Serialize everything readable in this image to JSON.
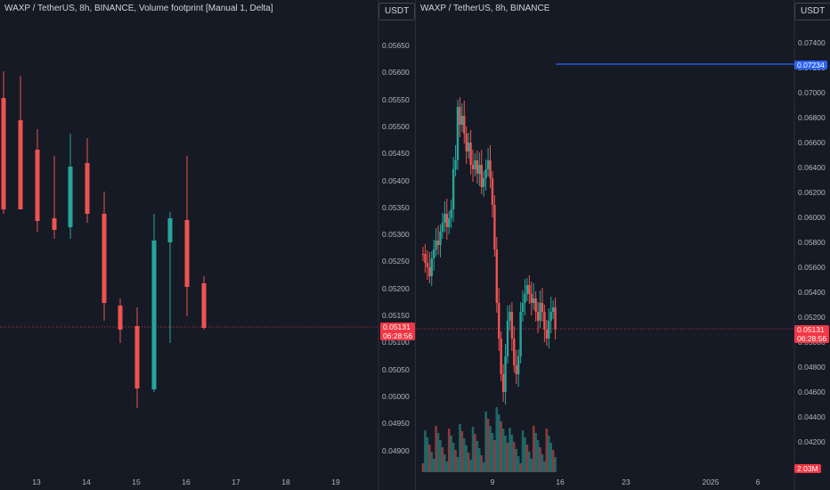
{
  "left_chart": {
    "title": "WAXP / TetherUS, 8h, BINANCE, Volume footprint [Manual 1, Delta]",
    "currency": "USDT",
    "price_labels": [
      "0.05650",
      "0.05600",
      "0.05550",
      "0.05500",
      "0.05450",
      "0.05400",
      "0.05350",
      "0.05300",
      "0.05250",
      "0.05200",
      "0.05150",
      "0.05100",
      "0.05050",
      "0.05000",
      "0.04950",
      "0.04900"
    ],
    "current_price": "0.05131",
    "countdown": "06:28:56",
    "time_labels": [
      "13",
      "14",
      "15",
      "16",
      "17",
      "18",
      "19"
    ]
  },
  "right_chart": {
    "title": "WAXP / TetherUS, 8h, BINANCE",
    "currency": "USDT",
    "price_labels": [
      "0.07400",
      "0.07200",
      "0.07000",
      "0.06800",
      "0.06600",
      "0.06400",
      "0.06200",
      "0.06000",
      "0.05800",
      "0.05600",
      "0.05400",
      "0.05200",
      "0.05000",
      "0.04800",
      "0.04600",
      "0.04400",
      "0.04200"
    ],
    "line_price": "0.07234",
    "current_price": "0.05131",
    "countdown": "06:28:56",
    "volume_label": "2.03M",
    "time_labels": [
      "9",
      "16",
      "23",
      "2025",
      "6"
    ]
  },
  "colors": {
    "up": "#26a69a",
    "down": "#ef5350",
    "line": "#2962ff",
    "background": "#161a25"
  }
}
